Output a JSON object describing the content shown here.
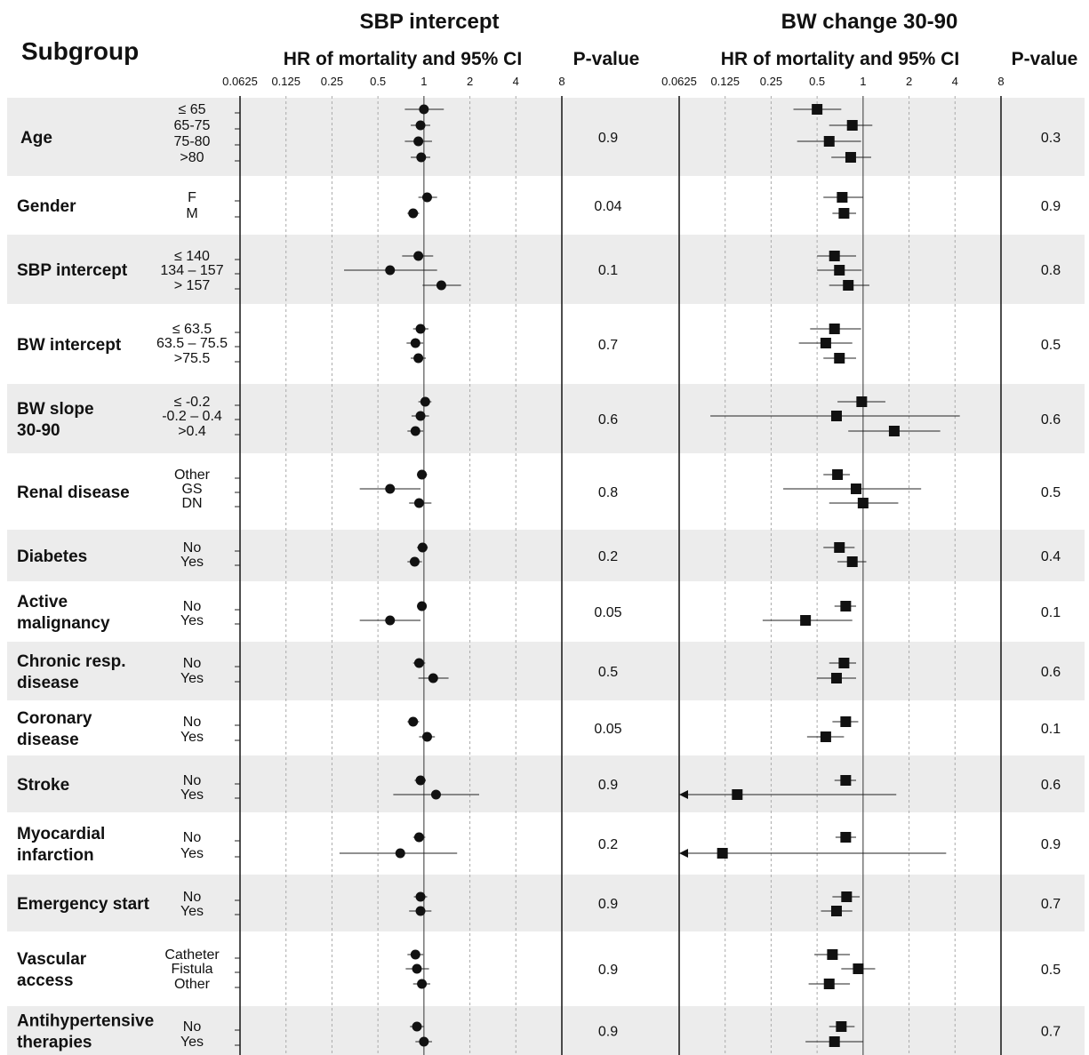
{
  "headers": {
    "subgroup": "Subgroup",
    "left_title": "SBP intercept",
    "right_title": "BW change 30-90",
    "hr_label": "HR of mortality and 95% CI",
    "p_label": "P-value"
  },
  "chart_data": {
    "type": "forest",
    "x_scale": "log2",
    "xlim": [
      0.0625,
      8
    ],
    "x_ticks": [
      0.0625,
      0.125,
      0.25,
      0.5,
      1,
      2,
      4,
      8
    ],
    "x_tick_labels": [
      "0.0625",
      "0.125",
      "0.25",
      "0.5",
      "1",
      "2",
      "4",
      "8"
    ],
    "reference_line": 1,
    "panels": [
      {
        "title": "SBP intercept",
        "marker": "circle"
      },
      {
        "title": "BW change 30-90",
        "marker": "square"
      }
    ],
    "groups": [
      {
        "name": "Age",
        "p": [
          "0.9",
          "0.3"
        ],
        "levels": [
          {
            "label": "≤ 65",
            "l": [
              1.0,
              0.75,
              1.35
            ],
            "r": [
              0.5,
              0.35,
              0.72
            ]
          },
          {
            "label": "65-75",
            "l": [
              0.95,
              0.82,
              1.1
            ],
            "r": [
              0.85,
              0.6,
              1.15
            ]
          },
          {
            "label": "75-80",
            "l": [
              0.92,
              0.75,
              1.13
            ],
            "r": [
              0.6,
              0.37,
              0.97
            ]
          },
          {
            "label": ">80",
            "l": [
              0.96,
              0.82,
              1.1
            ],
            "r": [
              0.83,
              0.62,
              1.13
            ]
          }
        ]
      },
      {
        "name": "Gender",
        "p": [
          "0.04",
          "0.9"
        ],
        "levels": [
          {
            "label": "F",
            "l": [
              1.05,
              0.92,
              1.22
            ],
            "r": [
              0.73,
              0.55,
              1.0
            ]
          },
          {
            "label": "M",
            "l": [
              0.85,
              0.78,
              0.93
            ],
            "r": [
              0.75,
              0.63,
              0.9
            ]
          }
        ]
      },
      {
        "name": "SBP intercept",
        "p": [
          "0.1",
          "0.8"
        ],
        "levels": [
          {
            "label": "≤ 140",
            "l": [
              0.92,
              0.72,
              1.15
            ],
            "r": [
              0.65,
              0.5,
              0.9
            ]
          },
          {
            "label": "134 – 157",
            "l": [
              0.6,
              0.3,
              1.22
            ],
            "r": [
              0.7,
              0.5,
              0.98
            ]
          },
          {
            "label": "> 157",
            "l": [
              1.3,
              0.98,
              1.75
            ],
            "r": [
              0.8,
              0.6,
              1.1
            ]
          }
        ]
      },
      {
        "name": "BW intercept",
        "p": [
          "0.7",
          "0.5"
        ],
        "levels": [
          {
            "label": "≤ 63.5",
            "l": [
              0.95,
              0.85,
              1.07
            ],
            "r": [
              0.65,
              0.45,
              0.97
            ]
          },
          {
            "label": "63.5 – 75.5",
            "l": [
              0.88,
              0.77,
              0.99
            ],
            "r": [
              0.57,
              0.38,
              0.85
            ]
          },
          {
            "label": ">75.5",
            "l": [
              0.92,
              0.82,
              1.03
            ],
            "r": [
              0.7,
              0.55,
              0.9
            ]
          }
        ]
      },
      {
        "name": "BW slope 30-90",
        "p": [
          "0.6",
          "0.6"
        ],
        "levels": [
          {
            "label": "≤ -0.2",
            "l": [
              1.02,
              0.92,
              1.12
            ],
            "r": [
              0.98,
              0.68,
              1.4
            ]
          },
          {
            "label": "-0.2 – 0.4",
            "l": [
              0.95,
              0.83,
              1.08
            ],
            "r": [
              0.67,
              0.1,
              4.3
            ]
          },
          {
            "label": ">0.4",
            "l": [
              0.88,
              0.78,
              0.99
            ],
            "r": [
              1.6,
              0.8,
              3.2
            ]
          }
        ]
      },
      {
        "name": "Renal disease",
        "p": [
          "0.8",
          "0.5"
        ],
        "levels": [
          {
            "label": "Other",
            "l": [
              0.97,
              0.9,
              1.05
            ],
            "r": [
              0.68,
              0.55,
              0.82
            ]
          },
          {
            "label": "GS",
            "l": [
              0.6,
              0.38,
              0.95
            ],
            "r": [
              0.9,
              0.3,
              2.4
            ]
          },
          {
            "label": "DN",
            "l": [
              0.93,
              0.8,
              1.12
            ],
            "r": [
              1.0,
              0.6,
              1.7
            ]
          }
        ]
      },
      {
        "name": "Diabetes",
        "p": [
          "0.2",
          "0.4"
        ],
        "levels": [
          {
            "label": "No",
            "l": [
              0.98,
              0.9,
              1.06
            ],
            "r": [
              0.7,
              0.55,
              0.88
            ]
          },
          {
            "label": "Yes",
            "l": [
              0.87,
              0.78,
              0.97
            ],
            "r": [
              0.85,
              0.68,
              1.05
            ]
          }
        ]
      },
      {
        "name": "Active malignancy",
        "p": [
          "0.05",
          "0.1"
        ],
        "levels": [
          {
            "label": "No",
            "l": [
              0.97,
              0.9,
              1.04
            ],
            "r": [
              0.77,
              0.65,
              0.9
            ]
          },
          {
            "label": "Yes",
            "l": [
              0.6,
              0.38,
              0.95
            ],
            "r": [
              0.42,
              0.22,
              0.85
            ]
          }
        ]
      },
      {
        "name": "Chronic resp. disease",
        "p": [
          "0.5",
          "0.6"
        ],
        "levels": [
          {
            "label": "No",
            "l": [
              0.93,
              0.85,
              1.02
            ],
            "r": [
              0.75,
              0.6,
              0.9
            ]
          },
          {
            "label": "Yes",
            "l": [
              1.15,
              0.92,
              1.45
            ],
            "r": [
              0.67,
              0.5,
              0.9
            ]
          }
        ]
      },
      {
        "name": "Coronary disease",
        "p": [
          "0.05",
          "0.1"
        ],
        "levels": [
          {
            "label": "No",
            "l": [
              0.85,
              0.78,
              0.93
            ],
            "r": [
              0.77,
              0.63,
              0.93
            ]
          },
          {
            "label": "Yes",
            "l": [
              1.05,
              0.93,
              1.18
            ],
            "r": [
              0.57,
              0.43,
              0.75
            ]
          }
        ]
      },
      {
        "name": "Stroke",
        "p": [
          "0.9",
          "0.6"
        ],
        "levels": [
          {
            "label": "No",
            "l": [
              0.95,
              0.87,
              1.03
            ],
            "r": [
              0.77,
              0.65,
              0.9
            ]
          },
          {
            "label": "Yes",
            "l": [
              1.2,
              0.63,
              2.3
            ],
            "r": [
              0.15,
              0.0625,
              1.65
            ],
            "r_arrow": true
          }
        ]
      },
      {
        "name": "Myocardial infarction",
        "p": [
          "0.2",
          "0.9"
        ],
        "levels": [
          {
            "label": "No",
            "l": [
              0.93,
              0.85,
              1.02
            ],
            "r": [
              0.77,
              0.66,
              0.9
            ]
          },
          {
            "label": "Yes",
            "l": [
              0.7,
              0.28,
              1.65
            ],
            "r": [
              0.12,
              0.0625,
              3.5
            ],
            "r_arrow": true
          }
        ]
      },
      {
        "name": "Emergency start",
        "p": [
          "0.9",
          "0.7"
        ],
        "levels": [
          {
            "label": "No",
            "l": [
              0.95,
              0.86,
              1.05
            ],
            "r": [
              0.78,
              0.63,
              0.95
            ]
          },
          {
            "label": "Yes",
            "l": [
              0.95,
              0.8,
              1.12
            ],
            "r": [
              0.67,
              0.53,
              0.85
            ]
          }
        ]
      },
      {
        "name": "Vascular access",
        "p": [
          "0.9",
          "0.5"
        ],
        "levels": [
          {
            "label": "Catheter",
            "l": [
              0.88,
              0.78,
              0.99
            ],
            "r": [
              0.63,
              0.48,
              0.82
            ]
          },
          {
            "label": "Fistula",
            "l": [
              0.9,
              0.76,
              1.08
            ],
            "r": [
              0.93,
              0.72,
              1.2
            ]
          },
          {
            "label": "Other",
            "l": [
              0.97,
              0.85,
              1.1
            ],
            "r": [
              0.6,
              0.44,
              0.82
            ]
          }
        ]
      },
      {
        "name": "Antihypertensive therapies",
        "p": [
          "0.9",
          "0.7"
        ],
        "levels": [
          {
            "label": "No",
            "l": [
              0.9,
              0.81,
              1.0
            ],
            "r": [
              0.72,
              0.6,
              0.88
            ]
          },
          {
            "label": "Yes",
            "l": [
              1.0,
              0.88,
              1.13
            ],
            "r": [
              0.65,
              0.42,
              1.0
            ]
          }
        ]
      }
    ]
  }
}
